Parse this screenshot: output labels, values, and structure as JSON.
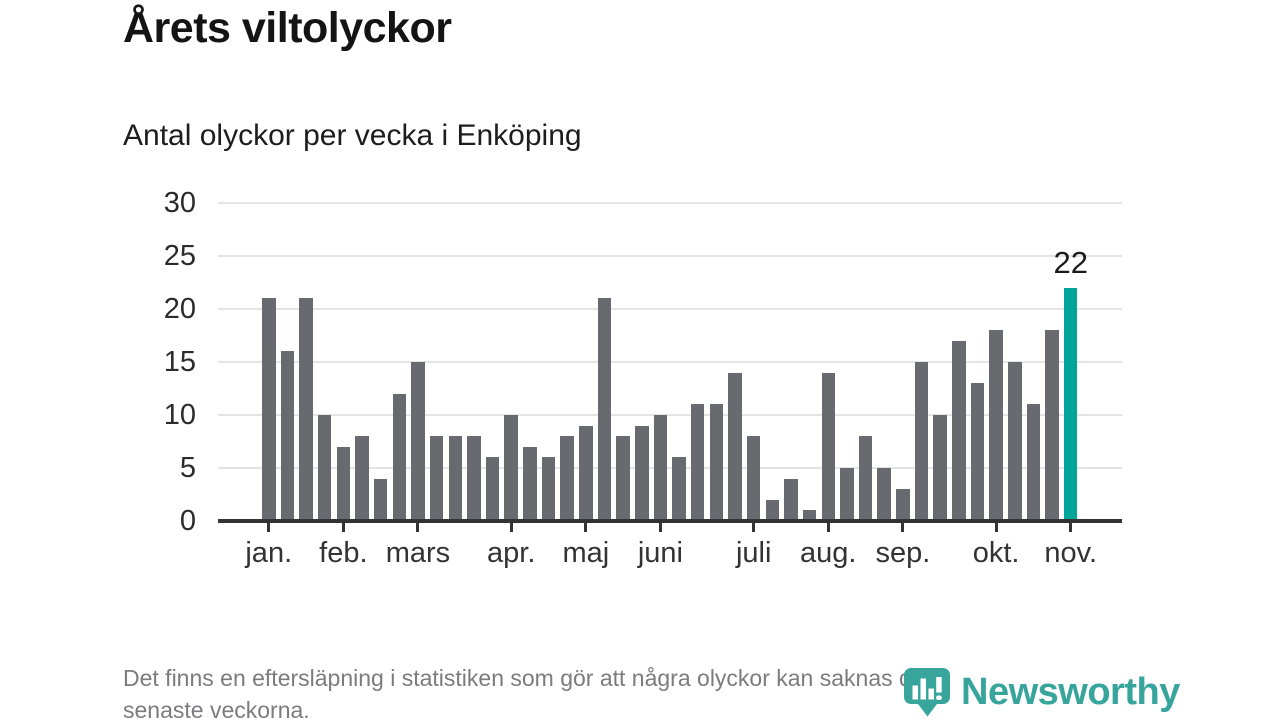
{
  "header": {
    "title": "Årets viltolyckor",
    "subtitle": "Antal olyckor per vecka i Enköping"
  },
  "chart_data": {
    "type": "bar",
    "title": "Årets viltolyckor",
    "subtitle": "Antal olyckor per vecka i Enköping",
    "xlabel": "",
    "ylabel": "",
    "ylim": [
      0,
      30
    ],
    "yticks": [
      0,
      5,
      10,
      15,
      20,
      25,
      30
    ],
    "grid": "horizontal",
    "values": [
      21,
      16,
      21,
      10,
      7,
      8,
      4,
      12,
      15,
      8,
      8,
      8,
      6,
      10,
      7,
      6,
      8,
      9,
      21,
      8,
      9,
      10,
      6,
      11,
      11,
      14,
      8,
      2,
      4,
      1,
      14,
      5,
      8,
      5,
      3,
      15,
      10,
      17,
      13,
      18,
      15,
      11,
      18,
      22
    ],
    "month_ticks": [
      {
        "label": "jan.",
        "week_index": 0
      },
      {
        "label": "feb.",
        "week_index": 4
      },
      {
        "label": "mars",
        "week_index": 8
      },
      {
        "label": "apr.",
        "week_index": 13
      },
      {
        "label": "maj",
        "week_index": 17
      },
      {
        "label": "juni",
        "week_index": 21
      },
      {
        "label": "juli",
        "week_index": 26
      },
      {
        "label": "aug.",
        "week_index": 30
      },
      {
        "label": "sep.",
        "week_index": 34
      },
      {
        "label": "okt.",
        "week_index": 39
      },
      {
        "label": "nov.",
        "week_index": 43
      }
    ],
    "highlight": {
      "index": 43,
      "value": 22,
      "label": "22"
    },
    "colors": {
      "bar": "#696970",
      "highlight": "#00a59a",
      "gridline": "#e4e4e4",
      "axis": "#333333"
    }
  },
  "footer": {
    "note_lines": [
      "Det finns en eftersläpning i statistiken som gör att några olyckor kan saknas de",
      "senaste veckorna."
    ]
  },
  "brand": {
    "name": "Newsworthy",
    "color": "#38a59d"
  }
}
